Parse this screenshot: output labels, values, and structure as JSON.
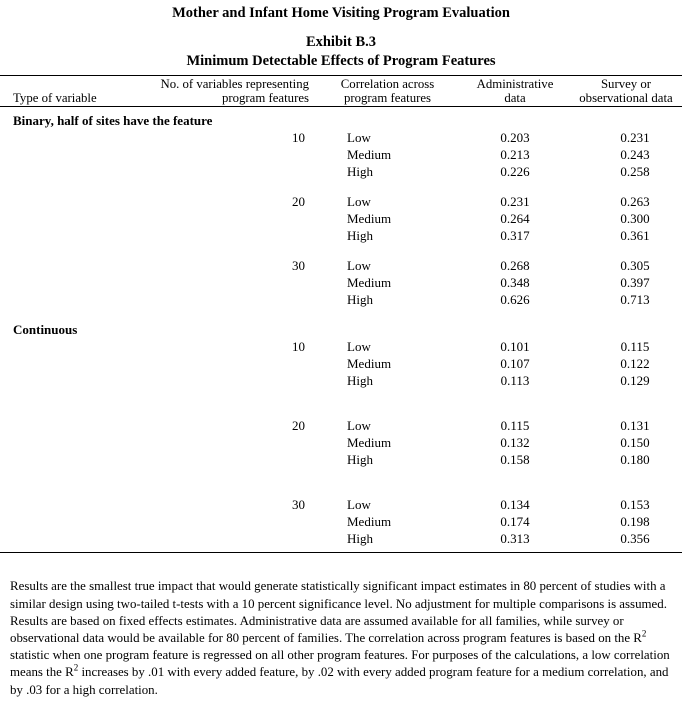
{
  "document": {
    "program_title": "Mother and Infant Home Visiting Program Evaluation",
    "exhibit_label": "Exhibit B.3",
    "exhibit_title": "Minimum Detectable Effects of Program Features"
  },
  "table": {
    "columns": [
      {
        "label": "Type of variable"
      },
      {
        "label": "No. of variables representing\nprogram features"
      },
      {
        "label": "Correlation across\nprogram features"
      },
      {
        "label": "Administrative\ndata"
      },
      {
        "label": "Survey or\nobservational data"
      }
    ],
    "sections": [
      {
        "label": "Binary, half of sites have the feature",
        "groups": [
          {
            "n_variables": "10",
            "rows": [
              {
                "correlation": "Low",
                "administrative": "0.203",
                "survey": "0.231"
              },
              {
                "correlation": "Medium",
                "administrative": "0.213",
                "survey": "0.243"
              },
              {
                "correlation": "High",
                "administrative": "0.226",
                "survey": "0.258"
              }
            ]
          },
          {
            "n_variables": "20",
            "rows": [
              {
                "correlation": "Low",
                "administrative": "0.231",
                "survey": "0.263"
              },
              {
                "correlation": "Medium",
                "administrative": "0.264",
                "survey": "0.300"
              },
              {
                "correlation": "High",
                "administrative": "0.317",
                "survey": "0.361"
              }
            ]
          },
          {
            "n_variables": "30",
            "rows": [
              {
                "correlation": "Low",
                "administrative": "0.268",
                "survey": "0.305"
              },
              {
                "correlation": "Medium",
                "administrative": "0.348",
                "survey": "0.397"
              },
              {
                "correlation": "High",
                "administrative": "0.626",
                "survey": "0.713"
              }
            ]
          }
        ]
      },
      {
        "label": "Continuous",
        "groups": [
          {
            "n_variables": "10",
            "rows": [
              {
                "correlation": "Low",
                "administrative": "0.101",
                "survey": "0.115"
              },
              {
                "correlation": "Medium",
                "administrative": "0.107",
                "survey": "0.122"
              },
              {
                "correlation": "High",
                "administrative": "0.113",
                "survey": "0.129"
              }
            ]
          },
          {
            "n_variables": "20",
            "rows": [
              {
                "correlation": "Low",
                "administrative": "0.115",
                "survey": "0.131"
              },
              {
                "correlation": "Medium",
                "administrative": "0.132",
                "survey": "0.150"
              },
              {
                "correlation": "High",
                "administrative": "0.158",
                "survey": "0.180"
              }
            ]
          },
          {
            "n_variables": "30",
            "rows": [
              {
                "correlation": "Low",
                "administrative": "0.134",
                "survey": "0.153"
              },
              {
                "correlation": "Medium",
                "administrative": "0.174",
                "survey": "0.198"
              },
              {
                "correlation": "High",
                "administrative": "0.313",
                "survey": "0.356"
              }
            ]
          }
        ]
      }
    ]
  },
  "footnote": {
    "segments": [
      {
        "text": "Results are the smallest true impact that would generate statistically significant impact estimates in 80 percent of studies with a similar design using two-tailed t-tests with a 10 percent significance level. No adjustment for multiple comparisons is assumed. Results are based on fixed effects estimates.  Administrative data are assumed available for all families, while survey or observational data would be available for 80 percent of families. The correlation across program features is based on the R"
      },
      {
        "text": "2",
        "sup": true
      },
      {
        "text": " statistic when one program feature is regressed on all other program features. For purposes of the calculations, a low correlation means the R"
      },
      {
        "text": "2",
        "sup": true
      },
      {
        "text": " increases by .01 with every added feature, by .02 with every added program feature for a medium correlation, and by .03 for a high correlation."
      }
    ]
  }
}
